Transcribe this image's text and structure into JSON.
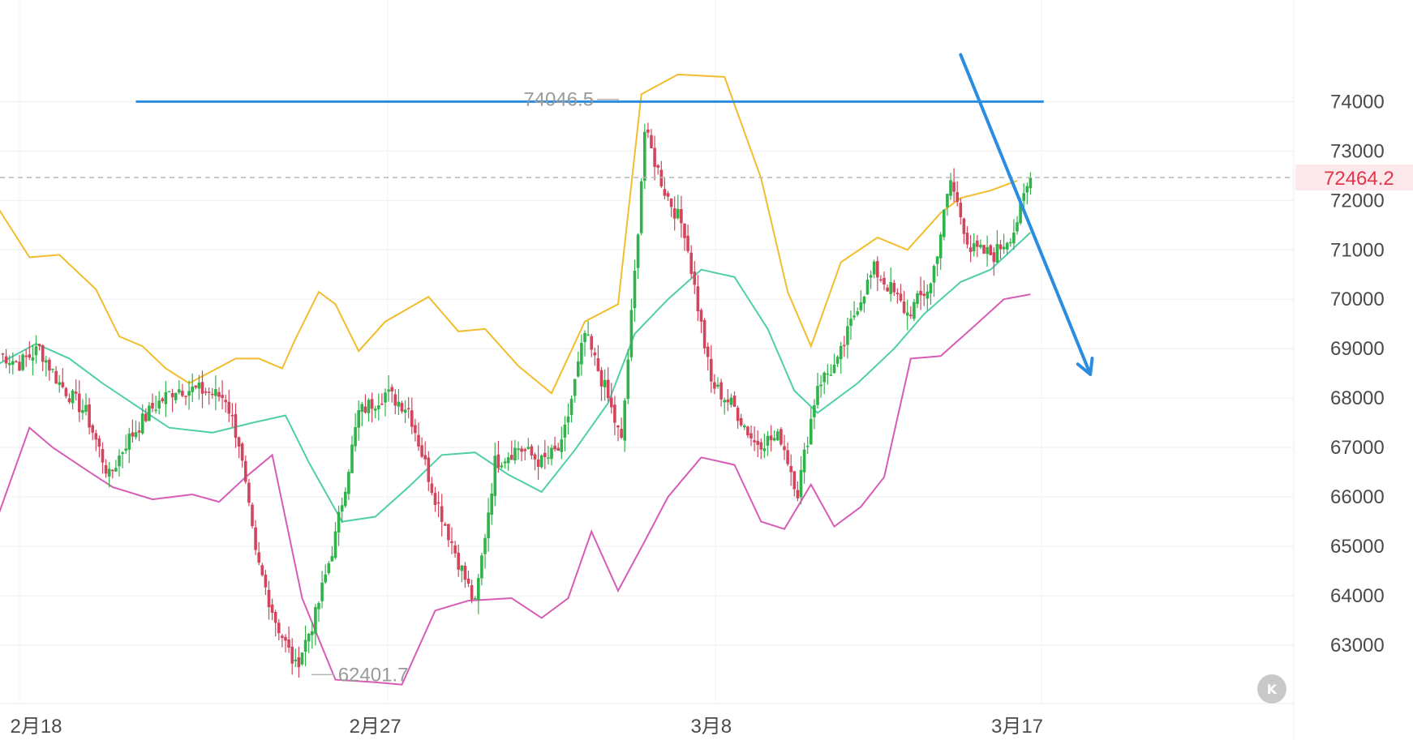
{
  "chart_data": {
    "type": "candlestick",
    "title": "",
    "xlabel": "",
    "ylabel": "",
    "ylim": [
      62000,
      75500
    ],
    "y_ticks": [
      74000,
      73000,
      72000,
      71000,
      70000,
      69000,
      68000,
      67000,
      66000,
      65000,
      64000,
      63000
    ],
    "y_tick_labels": [
      "74000",
      "73000",
      "72000",
      "71000",
      "70000",
      "69000",
      "68000",
      "67000",
      "66000",
      "65000",
      "64000",
      "63000"
    ],
    "x_tick_labels": [
      "2月18",
      "2月27",
      "3月8",
      "3月17"
    ],
    "x_tick_index": [
      5,
      107,
      208,
      300
    ],
    "x_range": [
      -6,
      330
    ],
    "grid": true,
    "current_price": 72464.2,
    "current_price_label": "72464.2",
    "high_annotation": {
      "value": 74046.5,
      "label": "74046.5",
      "index": 181
    },
    "low_annotation": {
      "value": 62401.7,
      "label": "62401.7",
      "index": 87
    },
    "resistance_level": 74000,
    "trend_arrow": {
      "from": {
        "index": 283,
        "price": 74950
      },
      "to": {
        "index": 322,
        "price": 68480
      }
    },
    "colors": {
      "up": "#2fb34a",
      "down": "#d2455c",
      "upper_band": "#f2bd2d",
      "middle_band": "#4fcfa8",
      "lower_band": "#d65cb5",
      "resistance_line": "#2b8de0",
      "arrow": "#2b8de0",
      "current_price": "#e0354a"
    },
    "bands": {
      "upper": [
        [
          -6,
          71800
        ],
        [
          3,
          70850
        ],
        [
          12,
          70900
        ],
        [
          23,
          70200
        ],
        [
          30,
          69250
        ],
        [
          37,
          69050
        ],
        [
          44,
          68600
        ],
        [
          51,
          68300
        ],
        [
          58,
          68550
        ],
        [
          65,
          68800
        ],
        [
          72,
          68800
        ],
        [
          79,
          68600
        ],
        [
          83,
          69200
        ],
        [
          90,
          70150
        ],
        [
          95,
          69900
        ],
        [
          102,
          68950
        ],
        [
          110,
          69550
        ],
        [
          123,
          70050
        ],
        [
          132,
          69350
        ],
        [
          140,
          69400
        ],
        [
          150,
          68650
        ],
        [
          160,
          68100
        ],
        [
          170,
          69550
        ],
        [
          180,
          69900
        ],
        [
          187,
          74150
        ],
        [
          198,
          74550
        ],
        [
          212,
          74500
        ],
        [
          223,
          72450
        ],
        [
          231,
          70150
        ],
        [
          238,
          69050
        ],
        [
          247,
          70750
        ],
        [
          258,
          71250
        ],
        [
          267,
          71000
        ],
        [
          277,
          71750
        ],
        [
          283,
          72050
        ],
        [
          292,
          72200
        ],
        [
          300,
          72400
        ]
      ],
      "middle": [
        [
          -6,
          68700
        ],
        [
          5,
          69100
        ],
        [
          15,
          68800
        ],
        [
          25,
          68300
        ],
        [
          35,
          67850
        ],
        [
          45,
          67400
        ],
        [
          58,
          67300
        ],
        [
          70,
          67500
        ],
        [
          80,
          67650
        ],
        [
          87,
          66700
        ],
        [
          97,
          65500
        ],
        [
          107,
          65600
        ],
        [
          117,
          66200
        ],
        [
          127,
          66850
        ],
        [
          137,
          66900
        ],
        [
          147,
          66450
        ],
        [
          157,
          66100
        ],
        [
          167,
          66950
        ],
        [
          177,
          67900
        ],
        [
          185,
          69300
        ],
        [
          195,
          70000
        ],
        [
          205,
          70600
        ],
        [
          215,
          70450
        ],
        [
          225,
          69400
        ],
        [
          233,
          68150
        ],
        [
          240,
          67700
        ],
        [
          252,
          68300
        ],
        [
          263,
          69000
        ],
        [
          272,
          69700
        ],
        [
          283,
          70350
        ],
        [
          292,
          70600
        ],
        [
          300,
          71100
        ],
        [
          304,
          71350
        ]
      ],
      "lower": [
        [
          -6,
          65700
        ],
        [
          3,
          67400
        ],
        [
          10,
          67000
        ],
        [
          20,
          66550
        ],
        [
          28,
          66200
        ],
        [
          40,
          65950
        ],
        [
          52,
          66050
        ],
        [
          60,
          65900
        ],
        [
          68,
          66400
        ],
        [
          76,
          66850
        ],
        [
          85,
          63950
        ],
        [
          95,
          62300
        ],
        [
          107,
          62250
        ],
        [
          115,
          62200
        ],
        [
          125,
          63700
        ],
        [
          135,
          63900
        ],
        [
          148,
          63950
        ],
        [
          157,
          63550
        ],
        [
          165,
          63950
        ],
        [
          172,
          65300
        ],
        [
          180,
          64100
        ],
        [
          188,
          65100
        ],
        [
          195,
          66000
        ],
        [
          205,
          66800
        ],
        [
          215,
          66650
        ],
        [
          223,
          65500
        ],
        [
          230,
          65350
        ],
        [
          238,
          66250
        ],
        [
          245,
          65400
        ],
        [
          253,
          65800
        ],
        [
          260,
          66400
        ],
        [
          268,
          68800
        ],
        [
          277,
          68850
        ],
        [
          287,
          69450
        ],
        [
          296,
          70000
        ],
        [
          304,
          70100
        ]
      ]
    },
    "candles_prefix": {
      "anchors": [
        [
          -6,
          68900
        ],
        [
          0,
          68700
        ],
        [
          6,
          69000
        ],
        [
          12,
          68300
        ],
        [
          20,
          67700
        ],
        [
          27,
          66400
        ],
        [
          32,
          67100
        ],
        [
          40,
          67800
        ],
        [
          47,
          68200
        ],
        [
          55,
          68150
        ],
        [
          62,
          68000
        ],
        [
          66,
          67100
        ],
        [
          71,
          64800
        ],
        [
          77,
          63500
        ],
        [
          83,
          62550
        ],
        [
          89,
          63600
        ],
        [
          95,
          65200
        ],
        [
          102,
          67700
        ],
        [
          110,
          68100
        ],
        [
          117,
          67800
        ],
        [
          124,
          66200
        ],
        [
          132,
          64700
        ],
        [
          137,
          63800
        ],
        [
          143,
          66700
        ],
        [
          150,
          67000
        ],
        [
          157,
          66700
        ],
        [
          163,
          67000
        ],
        [
          170,
          69300
        ],
        [
          176,
          68200
        ],
        [
          181,
          67100
        ],
        [
          185,
          70500
        ],
        [
          188,
          73400
        ],
        [
          194,
          72200
        ],
        [
          200,
          71400
        ],
        [
          208,
          68300
        ],
        [
          215,
          67800
        ],
        [
          221,
          67100
        ],
        [
          229,
          67200
        ],
        [
          234,
          66100
        ],
        [
          240,
          68300
        ],
        [
          246,
          68700
        ],
        [
          252,
          69900
        ],
        [
          257,
          70600
        ],
        [
          262,
          70200
        ],
        [
          267,
          69700
        ],
        [
          274,
          70300
        ],
        [
          280,
          72400
        ],
        [
          286,
          71000
        ],
        [
          293,
          70900
        ],
        [
          299,
          71400
        ],
        [
          304,
          72464.2
        ]
      ],
      "wiggle_amplitude": 350,
      "seed": 7
    }
  }
}
